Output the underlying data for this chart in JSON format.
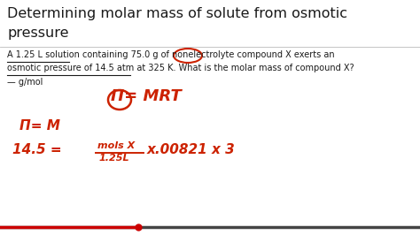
{
  "bg_color": "#ffffff",
  "title_color": "#1a1a1a",
  "red_color": "#cc2200",
  "title_fontsize": 11.5,
  "body_fontsize": 7.0,
  "red_formula_large": 13,
  "red_formula_mid": 11,
  "red_formula_small": 8,
  "title_line1": "Determining molar mass of solute from osmotic",
  "title_line2": "pressure",
  "body_line1": "A 1.25 L solution containing 75.0 g of nonelectrolyte compound X exerts an",
  "body_line2": "osmotic pressure of 14.5 atm at 325 K. What is the molar mass of compound X?",
  "body_line3": "— g/mol",
  "formula1": "Π= MRT",
  "formula2": "Π= M",
  "formula3_left": "14.5 =",
  "formula3_num": "mols X",
  "formula3_den": "1.25L",
  "formula3_right": "x.00821 x 3"
}
